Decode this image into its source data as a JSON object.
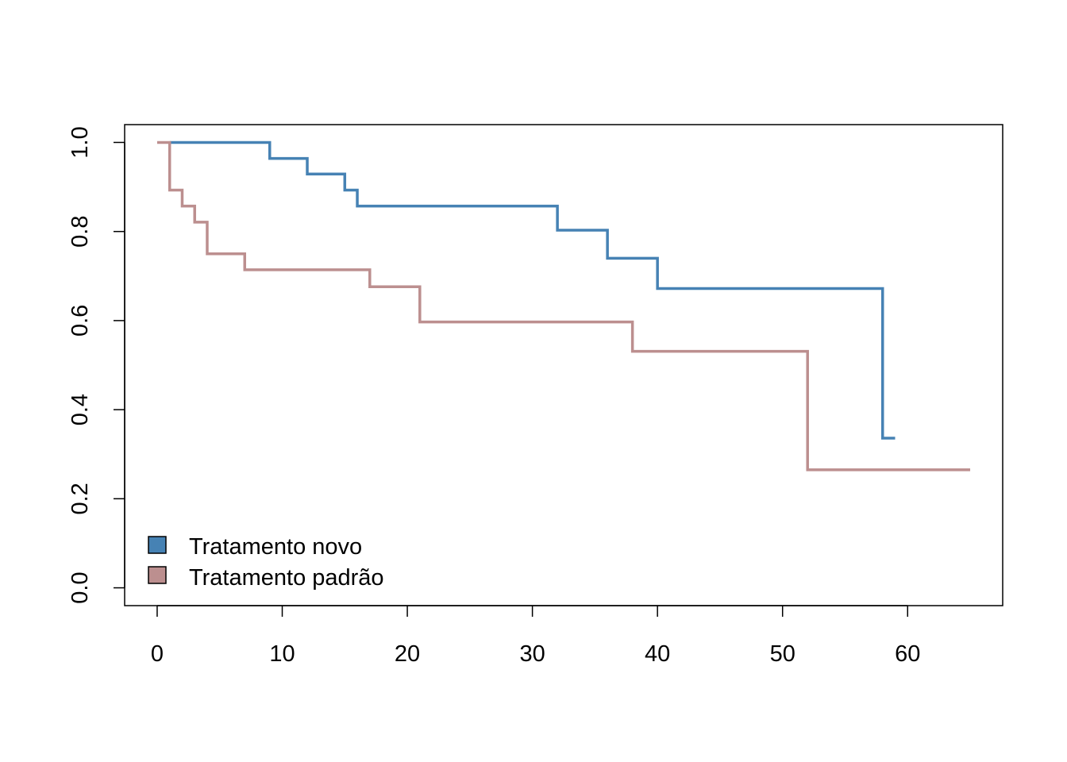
{
  "chart_data": {
    "type": "line",
    "subtype": "step",
    "title": "",
    "xlabel": "",
    "ylabel": "",
    "xlim": [
      -2.6,
      67.6
    ],
    "ylim": [
      -0.04,
      1.04
    ],
    "x_ticks": [
      0,
      10,
      20,
      30,
      40,
      50,
      60
    ],
    "y_ticks": [
      0.0,
      0.2,
      0.4,
      0.6,
      0.8,
      1.0
    ],
    "x_tick_labels": [
      "0",
      "10",
      "20",
      "30",
      "40",
      "50",
      "60"
    ],
    "y_tick_labels": [
      "0.0",
      "0.2",
      "0.4",
      "0.6",
      "0.8",
      "1.0"
    ],
    "grid": false,
    "legend_position": "bottom-left",
    "series": [
      {
        "name": "Tratamento novo",
        "color": "#4682B4",
        "points": [
          [
            1,
            1.0
          ],
          [
            9,
            0.964
          ],
          [
            12,
            0.929
          ],
          [
            15,
            0.893
          ],
          [
            16,
            0.857
          ],
          [
            32,
            0.803
          ],
          [
            36,
            0.74
          ],
          [
            40,
            0.672
          ],
          [
            58,
            0.336
          ],
          [
            59,
            0.336
          ]
        ]
      },
      {
        "name": "Tratamento padrão",
        "color": "#BC8F8F",
        "points": [
          [
            0,
            1.0
          ],
          [
            1,
            0.893
          ],
          [
            2,
            0.857
          ],
          [
            3,
            0.821
          ],
          [
            4,
            0.75
          ],
          [
            7,
            0.714
          ],
          [
            17,
            0.676
          ],
          [
            21,
            0.597
          ],
          [
            38,
            0.531
          ],
          [
            52,
            0.265
          ],
          [
            65,
            0.265
          ]
        ]
      }
    ]
  }
}
